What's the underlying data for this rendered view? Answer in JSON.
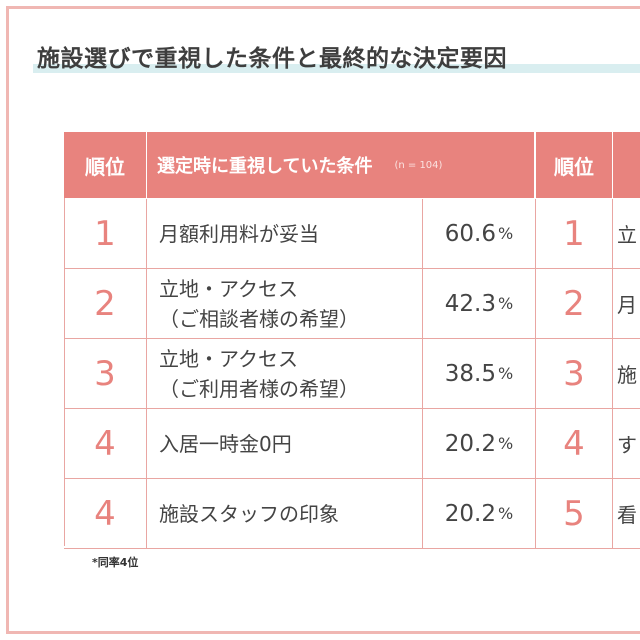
{
  "title": "施設選びで重視した条件と最終的な決定要因",
  "table": {
    "rank_header": "順位",
    "cond_header": "選定時に重視していた条件",
    "sample_note": "(n = 104)",
    "rank_header_2": "順位",
    "rows": [
      {
        "rank": "1",
        "line1": "月額利用料が妥当",
        "line2": "",
        "pct": "60.6",
        "unit": "%",
        "rank2": "1",
        "cond2": "立"
      },
      {
        "rank": "2",
        "line1": "立地・アクセス",
        "line2": "（ご相談者様の希望）",
        "pct": "42.3",
        "unit": "%",
        "rank2": "2",
        "cond2": "月"
      },
      {
        "rank": "3",
        "line1": "立地・アクセス",
        "line2": "（ご利用者様の希望）",
        "pct": "38.5",
        "unit": "%",
        "rank2": "3",
        "cond2": "施"
      },
      {
        "rank": "4",
        "line1": "入居一時金0円",
        "line2": "",
        "pct": "20.2",
        "unit": "%",
        "rank2": "4",
        "cond2": "す"
      },
      {
        "rank": "4",
        "line1": "施設スタッフの印象",
        "line2": "",
        "pct": "20.2",
        "unit": "%",
        "rank2": "5",
        "cond2": "看"
      }
    ]
  },
  "footnote": "*同率4位"
}
